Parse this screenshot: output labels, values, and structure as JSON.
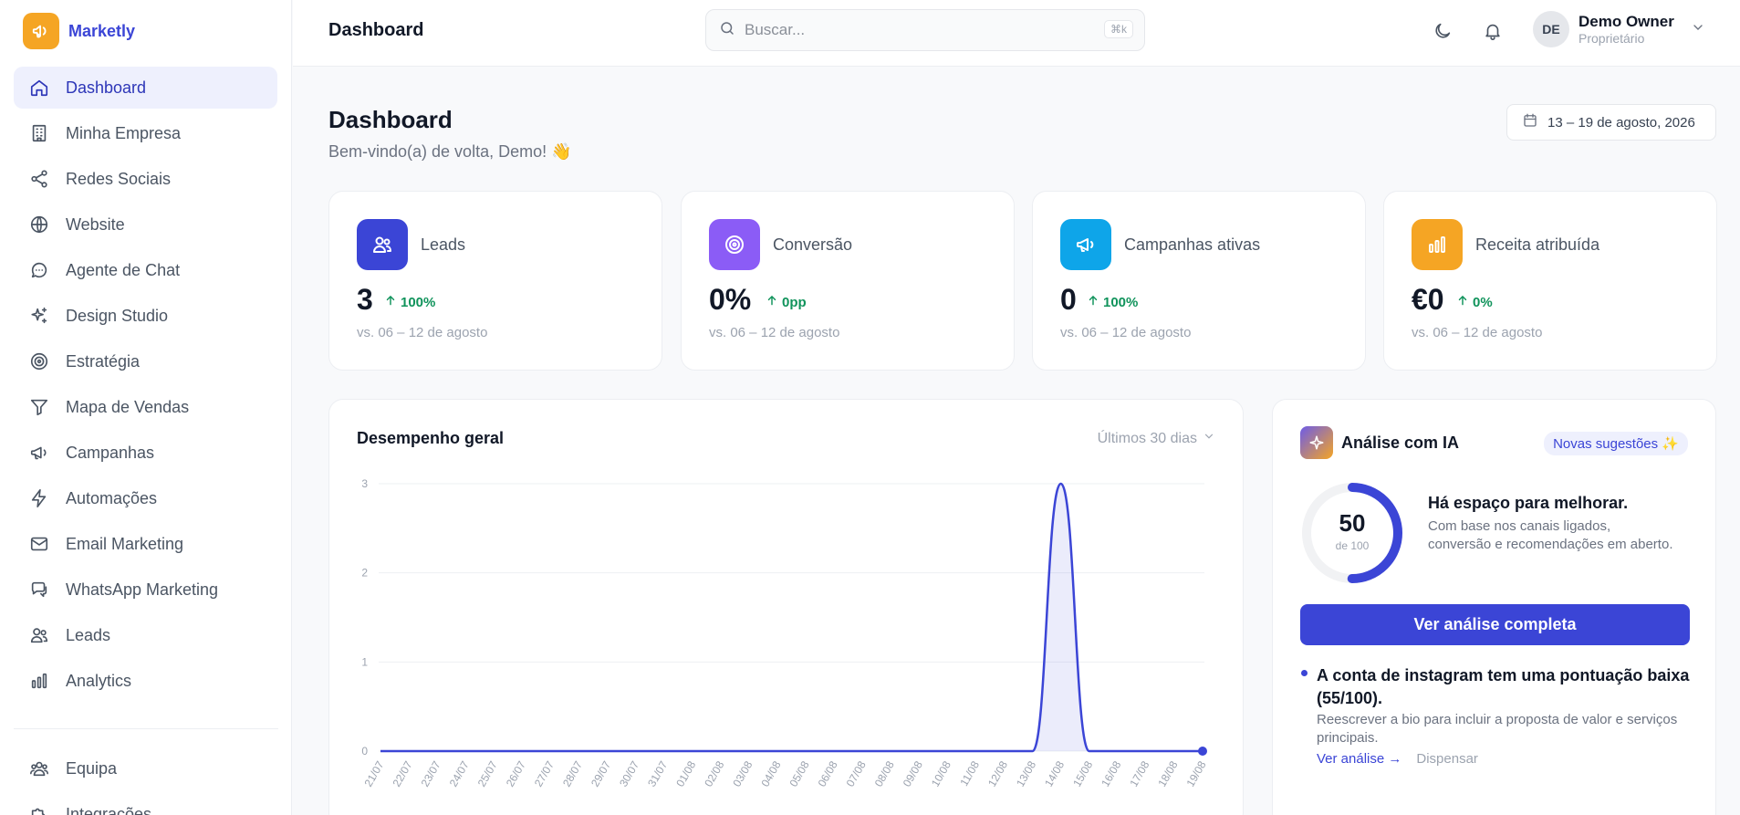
{
  "brand": {
    "name": "Marketly"
  },
  "sidebar": {
    "items": [
      {
        "label": "Dashboard",
        "icon": "home-icon",
        "active": true
      },
      {
        "label": "Minha Empresa",
        "icon": "building-icon"
      },
      {
        "label": "Redes Sociais",
        "icon": "share-icon"
      },
      {
        "label": "Website",
        "icon": "globe-icon"
      },
      {
        "label": "Agente de Chat",
        "icon": "chat-icon"
      },
      {
        "label": "Design Studio",
        "icon": "sparkles-icon"
      },
      {
        "label": "Estratégia",
        "icon": "target-icon"
      },
      {
        "label": "Mapa de Vendas",
        "icon": "funnel-icon"
      },
      {
        "label": "Campanhas",
        "icon": "megaphone-icon"
      },
      {
        "label": "Automações",
        "icon": "bolt-icon"
      },
      {
        "label": "Email Marketing",
        "icon": "mail-icon"
      },
      {
        "label": "WhatsApp Marketing",
        "icon": "whatsapp-icon"
      },
      {
        "label": "Leads",
        "icon": "users-icon"
      },
      {
        "label": "Analytics",
        "icon": "bar-chart-icon"
      }
    ],
    "bottom": [
      {
        "label": "Equipa",
        "icon": "team-icon"
      },
      {
        "label": "Integrações",
        "icon": "puzzle-icon"
      }
    ]
  },
  "header": {
    "title": "Dashboard",
    "search_placeholder": "Buscar...",
    "search_shortcut": "⌘k",
    "user": {
      "initials": "DE",
      "name": "Demo Owner",
      "role": "Proprietário"
    }
  },
  "page": {
    "title": "Dashboard",
    "subtitle": "Bem-vindo(a) de volta, Demo! 👋",
    "date_range": "13 – 19 de agosto, 2026"
  },
  "kpis": [
    {
      "label": "Leads",
      "value": "3",
      "delta": "100%",
      "note": "vs. 06 – 12 de agosto",
      "color": "#3b45d6",
      "icon": "users-icon"
    },
    {
      "label": "Conversão",
      "value": "0%",
      "delta": "0pp",
      "note": "vs. 06 – 12 de agosto",
      "color": "#8b5cf6",
      "icon": "target-icon"
    },
    {
      "label": "Campanhas ativas",
      "value": "0",
      "delta": "100%",
      "note": "vs. 06 – 12 de agosto",
      "color": "#0ea5e9",
      "icon": "megaphone-icon"
    },
    {
      "label": "Receita atribuída",
      "value": "€0",
      "delta": "0%",
      "note": "vs. 06 – 12 de agosto",
      "color": "#f5a524",
      "icon": "bar-chart-icon"
    }
  ],
  "performance": {
    "title": "Desempenho geral",
    "range": "Últimos 30 dias"
  },
  "chart_data": {
    "type": "area",
    "x": [
      "21/07",
      "22/07",
      "23/07",
      "24/07",
      "25/07",
      "26/07",
      "27/07",
      "28/07",
      "29/07",
      "30/07",
      "31/07",
      "01/08",
      "02/08",
      "03/08",
      "04/08",
      "05/08",
      "06/08",
      "07/08",
      "08/08",
      "09/08",
      "10/08",
      "11/08",
      "12/08",
      "13/08",
      "14/08",
      "15/08",
      "16/08",
      "17/08",
      "18/08",
      "19/08"
    ],
    "series": [
      {
        "values": [
          0,
          0,
          0,
          0,
          0,
          0,
          0,
          0,
          0,
          0,
          0,
          0,
          0,
          0,
          0,
          0,
          0,
          0,
          0,
          0,
          0,
          0,
          0,
          0,
          3,
          0,
          0,
          0,
          0,
          0
        ]
      }
    ],
    "ylim": [
      0,
      3
    ],
    "yticks": [
      0,
      1,
      2,
      3
    ],
    "grid": true,
    "color": "#3b45d6"
  },
  "ai": {
    "title": "Análise com IA",
    "badge": "Novas sugestões ✨",
    "score": "50",
    "score_max": "de 100",
    "score_value": 50,
    "headline": "Há espaço para melhorar.",
    "description": "Com base nos canais ligados, conversão e recomendações em aberto.",
    "button": "Ver análise completa",
    "suggestion": {
      "title": "A conta de instagram tem uma pontuação baixa (55/100).",
      "description": "Reescrever a bio para incluir a proposta de valor e serviços principais.",
      "link": "Ver análise →",
      "dismiss": "Dispensar"
    }
  }
}
